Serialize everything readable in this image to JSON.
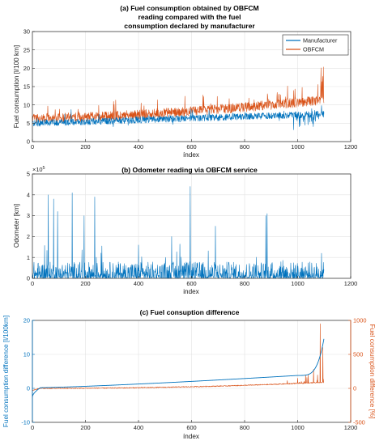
{
  "chart_data": [
    {
      "id": "a",
      "type": "line",
      "title_lines": [
        "(a) Fuel consumption obtained by OBFCM",
        "reading compared with the fuel",
        "consumption declared by manufacturer"
      ],
      "xlabel": "índex",
      "ylabel": "Fuel consumption [l/100 km]",
      "xlim": [
        0,
        1200
      ],
      "ylim": [
        0,
        30
      ],
      "xticks": [
        0,
        200,
        400,
        600,
        800,
        1000,
        1200
      ],
      "yticks": [
        0,
        5,
        10,
        15,
        20,
        25,
        30
      ],
      "grid": true,
      "legend": "top-right",
      "series": [
        {
          "name": "Manufacturer",
          "color": "#0072BD",
          "n_points": 1100,
          "approx_mean_start": 5.0,
          "approx_mean_end": 7.5,
          "approx_min": 1.5,
          "approx_max": 10.5
        },
        {
          "name": "OBFCM",
          "color": "#D95319",
          "n_points": 1100,
          "approx_mean_start": 6.0,
          "approx_mean_end": 11.0,
          "approx_min": 4.5,
          "approx_max": 25.0
        }
      ]
    },
    {
      "id": "b",
      "type": "line",
      "title": "(b) Odometer reading via OBFCM service",
      "xlabel": "index",
      "ylabel": "Odometer [km]",
      "y_multiplier": "×10",
      "y_multiplier_exp": "5",
      "xlim": [
        0,
        1200
      ],
      "ylim": [
        0,
        5
      ],
      "xticks": [
        0,
        200,
        400,
        600,
        800,
        1000,
        1200
      ],
      "yticks": [
        0,
        1,
        2,
        3,
        4,
        5
      ],
      "grid": true,
      "series": [
        {
          "color": "#0072BD",
          "n_points": 1100,
          "approx_typical_max": 0.8,
          "spikes": [
            [
              60,
              4.0
            ],
            [
              80,
              3.8
            ],
            [
              95,
              3.2
            ],
            [
              150,
              4.1
            ],
            [
              195,
              3.0
            ],
            [
              235,
              3.9
            ],
            [
              400,
              1.6
            ],
            [
              525,
              2.0
            ],
            [
              595,
              4.4
            ],
            [
              690,
              2.5
            ],
            [
              880,
              3.0
            ],
            [
              885,
              3.1
            ],
            [
              1090,
              1.2
            ]
          ]
        }
      ]
    },
    {
      "id": "c",
      "type": "line",
      "title": "(c) Fuel consuption difference",
      "xlabel": "índex",
      "ylabel_left": "Fuel consumption difference [l/100km]",
      "ylabel_right": "Fuel consumption difference [%]",
      "xlim": [
        0,
        1200
      ],
      "ylim_left": [
        -10,
        20
      ],
      "ylim_right": [
        -500,
        1000
      ],
      "xticks": [
        0,
        200,
        400,
        600,
        800,
        1000,
        1200
      ],
      "yticks_left": [
        -10,
        0,
        10,
        20
      ],
      "yticks_right": [
        -500,
        0,
        500,
        1000
      ],
      "left_axis_color": "#0072BD",
      "right_axis_color": "#D95319",
      "grid": true,
      "series": [
        {
          "axis": "left",
          "color": "#0072BD",
          "n_points": 1100,
          "approx_start": -2.5,
          "approx_at_1000": 3.8,
          "approx_end": 15.0
        },
        {
          "axis": "right",
          "color": "#D95319",
          "n_points": 1100,
          "approx_typical": [
            0,
            100
          ],
          "spikes": [
            [
              1000,
              150
            ],
            [
              1040,
              200
            ],
            [
              1060,
              280
            ],
            [
              1085,
              950
            ],
            [
              1095,
              600
            ]
          ]
        }
      ]
    }
  ]
}
